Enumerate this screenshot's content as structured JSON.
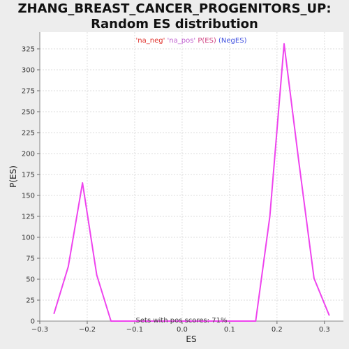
{
  "chart_data": {
    "type": "line",
    "title": "ZHANG_BREAST_CANCER_PROGENITORS_UP: Random ES distribution",
    "xlabel": "ES",
    "ylabel": "P(ES)",
    "xlim": [
      -0.3,
      0.34
    ],
    "ylim": [
      0,
      345
    ],
    "xticks": [
      -0.3,
      -0.2,
      -0.1,
      0.0,
      0.1,
      0.2,
      0.3
    ],
    "xtick_labels": [
      "−0.3",
      "−0.2",
      "−0.1",
      "0.0",
      "0.1",
      "0.2",
      "0.3"
    ],
    "yticks": [
      0,
      25,
      50,
      75,
      100,
      125,
      150,
      175,
      200,
      225,
      250,
      275,
      300,
      325
    ],
    "grid": true,
    "legend_text": [
      {
        "text": "'na_neg'",
        "color": "#e0302a"
      },
      {
        "text": "'na_pos'",
        "color": "#c060d0"
      },
      {
        "text": "P(ES)",
        "color": "#d04080"
      },
      {
        "text": "(NegES)",
        "color": "#4050e0"
      }
    ],
    "annotation": "Sets with pos scores: 71%",
    "series": [
      {
        "color": "#ee44ee",
        "x": [
          -0.27,
          -0.24,
          -0.21,
          -0.18,
          -0.15,
          -0.12,
          -0.09,
          -0.06,
          -0.03,
          0.0,
          0.03,
          0.06,
          0.09,
          0.12,
          0.155,
          0.185,
          0.215,
          0.245,
          0.278,
          0.31
        ],
        "y": [
          9,
          65,
          165,
          55,
          0,
          0,
          0,
          0,
          0,
          0,
          0,
          0,
          0,
          0,
          0,
          125,
          331,
          195,
          51,
          7
        ]
      }
    ]
  }
}
